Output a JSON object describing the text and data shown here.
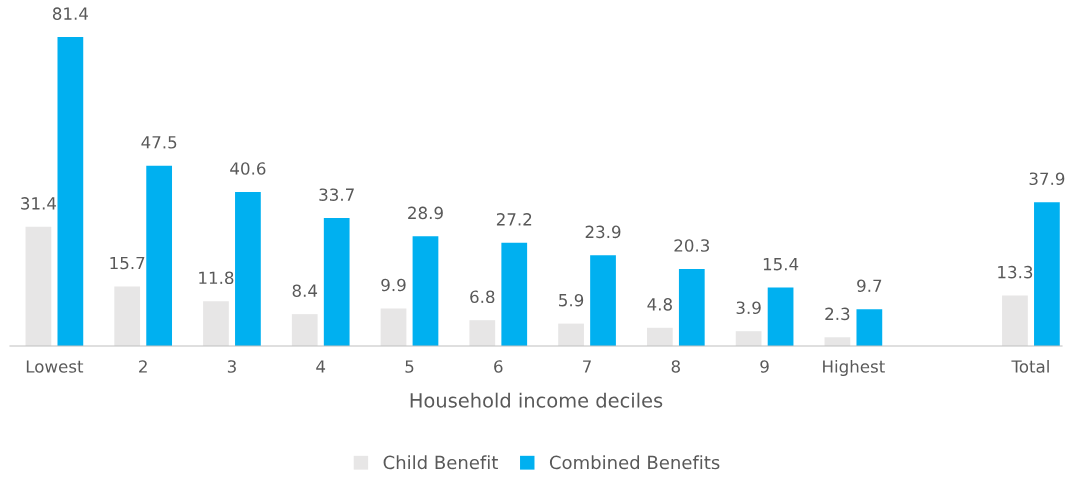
{
  "chart_data": {
    "type": "bar",
    "xlabel": "Household income deciles",
    "categories": [
      "Lowest",
      "2",
      "3",
      "4",
      "5",
      "6",
      "7",
      "8",
      "9",
      "Highest",
      null,
      "Total"
    ],
    "series": [
      {
        "name": "Child Benefit",
        "color": "#e7e6e6",
        "values": [
          31.4,
          15.7,
          11.8,
          8.4,
          9.9,
          6.8,
          5.9,
          4.8,
          3.9,
          2.3,
          null,
          13.3
        ]
      },
      {
        "name": "Combined Benefits",
        "color": "#00b0f0",
        "values": [
          81.4,
          47.5,
          40.6,
          33.7,
          28.9,
          27.2,
          23.9,
          20.3,
          15.4,
          9.7,
          null,
          37.9
        ]
      }
    ],
    "data_labels": true,
    "legend": "bottom",
    "grid": false,
    "tick_labels": "x"
  }
}
